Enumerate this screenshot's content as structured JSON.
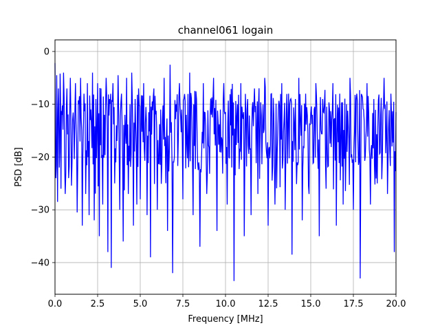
{
  "chart_data": {
    "type": "line",
    "title": "channel061 logain",
    "xlabel": "Frequency [MHz]",
    "ylabel": "PSD [dB]",
    "xlim": [
      0.0,
      20.0
    ],
    "ylim": [
      -46,
      2.2
    ],
    "grid": true,
    "xticks": [
      0.0,
      2.5,
      5.0,
      7.5,
      10.0,
      12.5,
      15.0,
      17.5,
      20.0
    ],
    "xtick_labels": [
      "0.0",
      "2.5",
      "5.0",
      "7.5",
      "10.0",
      "12.5",
      "15.0",
      "17.5",
      "20.0"
    ],
    "yticks": [
      0,
      -10,
      -20,
      -30,
      -40
    ],
    "ytick_labels": [
      "0",
      "−10",
      "−20",
      "−30",
      "−40"
    ],
    "series": [
      {
        "color": "#0000ff",
        "x": [
          0.0,
          0.05,
          0.1,
          0.15,
          0.2,
          0.25,
          0.3,
          0.35,
          0.4,
          0.5,
          0.6,
          0.7,
          0.8,
          0.9,
          1.0,
          1.1,
          1.2,
          1.3,
          1.4,
          1.5,
          1.6,
          1.7,
          1.8,
          1.9,
          2.0,
          2.1,
          2.2,
          2.3,
          2.4,
          2.5,
          2.6,
          2.7,
          2.8,
          2.9,
          3.0,
          3.1,
          3.2,
          3.3,
          3.4,
          3.5,
          3.6,
          3.7,
          3.8,
          3.9,
          4.0,
          4.1,
          4.2,
          4.3,
          4.4,
          4.5,
          4.6,
          4.7,
          4.8,
          4.9,
          5.0,
          5.2,
          5.4,
          5.6,
          5.8,
          6.0,
          6.2,
          6.4,
          6.6,
          6.75,
          6.9,
          7.1,
          7.3,
          7.5,
          7.7,
          7.9,
          8.1,
          8.3,
          8.5,
          8.7,
          8.9,
          9.1,
          9.3,
          9.5,
          9.7,
          9.9,
          10.1,
          10.3,
          10.5,
          10.7,
          10.9,
          11.1,
          11.3,
          11.5,
          11.7,
          11.9,
          12.1,
          12.3,
          12.5,
          12.7,
          12.9,
          13.1,
          13.3,
          13.5,
          13.7,
          13.9,
          14.1,
          14.3,
          14.5,
          14.7,
          14.9,
          15.1,
          15.3,
          15.5,
          15.7,
          15.9,
          16.1,
          16.3,
          16.5,
          16.7,
          16.9,
          17.1,
          17.3,
          17.5,
          17.7,
          17.9,
          18.1,
          18.3,
          18.5,
          18.7,
          18.9,
          19.1,
          19.3,
          19.5,
          19.7,
          19.9,
          20.0
        ],
        "y": [
          -2.2,
          -24,
          -4.5,
          -28.5,
          -7,
          -22,
          -4.2,
          -26,
          -12,
          -4,
          -27,
          -7,
          -24,
          -5,
          -21,
          -14,
          -6,
          -30.5,
          -10,
          -5,
          -33,
          -8,
          -27,
          -6,
          -31,
          -11,
          -4,
          -32,
          -9,
          -6,
          -35,
          -7,
          -29,
          -12,
          -5,
          -38,
          -9,
          -41,
          -6,
          -25,
          -14,
          -4.5,
          -30,
          -8,
          -36,
          -12,
          -5,
          -27,
          -10,
          -4,
          -33,
          -9,
          -29,
          -7,
          -28,
          -6,
          -31,
          -39,
          -7,
          -30,
          -11,
          -5,
          -34,
          -2.5,
          -42,
          -10,
          -6,
          -28,
          -12,
          -4,
          -31,
          -9,
          -37,
          -6,
          -27,
          -12,
          -5,
          -34,
          -11,
          -6,
          -29,
          -14,
          -43.5,
          -10,
          -6,
          -35,
          -9,
          -31,
          -7,
          -27,
          -12,
          -5,
          -33,
          -8,
          -29,
          -11,
          -6,
          -30,
          -8,
          -38.5,
          -9,
          -5,
          -32,
          -8,
          -27,
          -12,
          -6,
          -35,
          -9,
          -26,
          -11,
          -6,
          -33,
          -8,
          -29,
          -10,
          -5,
          -30,
          -8,
          -43,
          -11,
          -6,
          -29,
          -9,
          -25,
          -12,
          -5,
          -27,
          -8,
          -38,
          -11.5
        ]
      }
    ]
  }
}
